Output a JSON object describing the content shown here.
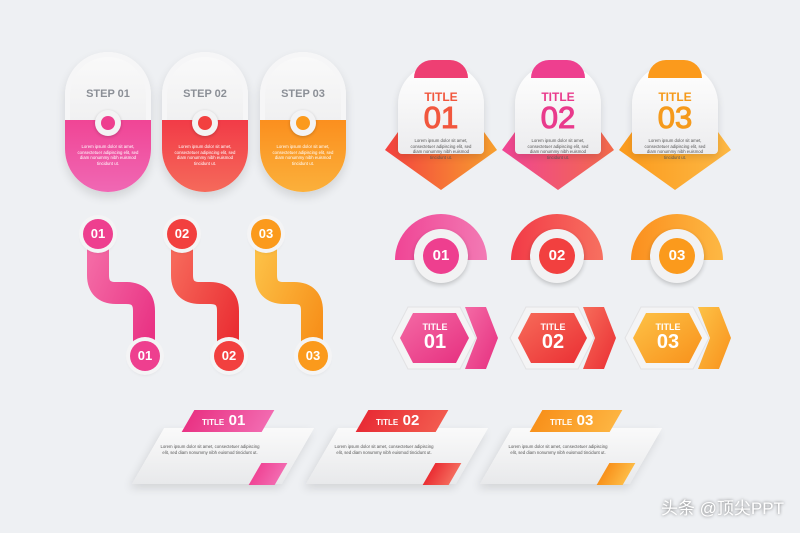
{
  "colors": {
    "pink": "#ee3f8f",
    "red": "#f2403f",
    "orange": "#fb9a1c"
  },
  "lorem_3": "Lorem ipsum dolor sit amet, consectetuer adipiscing elit, sed diam nonummy nibh euismod tincidunt ut.",
  "steps": [
    {
      "label": "STEP 01"
    },
    {
      "label": "STEP 02"
    },
    {
      "label": "STEP 03"
    }
  ],
  "title_cards": [
    {
      "title": "TITLE",
      "number": "01"
    },
    {
      "title": "TITLE",
      "number": "02"
    },
    {
      "title": "TITLE",
      "number": "03"
    }
  ],
  "path_badges": {
    "top": [
      "01",
      "02",
      "03"
    ],
    "bottom": [
      "01",
      "02",
      "03"
    ]
  },
  "semi_badges": [
    "01",
    "02",
    "03"
  ],
  "hex_badges": [
    {
      "title": "TITLE",
      "number": "01"
    },
    {
      "title": "TITLE",
      "number": "02"
    },
    {
      "title": "TITLE",
      "number": "03"
    }
  ],
  "banners": [
    {
      "title": "TITLE",
      "number": "01"
    },
    {
      "title": "TITLE",
      "number": "02"
    },
    {
      "title": "TITLE",
      "number": "03"
    }
  ],
  "watermark": "头条 @顶尖PPT"
}
